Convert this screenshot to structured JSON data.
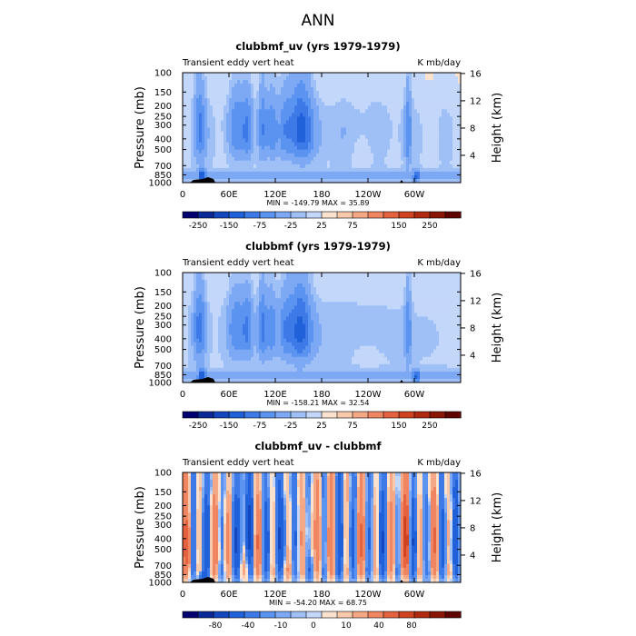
{
  "page": {
    "title": "ANN",
    "colors": {
      "text": "#000000",
      "title": "#888888",
      "background": "#ffffff"
    }
  },
  "chart_data": [
    {
      "type": "heatmap",
      "title": "clubbmf_uv (yrs 1979-1979)",
      "left_label": "Transient eddy vert heat",
      "right_label": "K mb/day",
      "ylabel": "Pressure (mb)",
      "ylabel_right": "Height (km)",
      "x_ticks": [
        "0",
        "60E",
        "120E",
        "180",
        "120W",
        "60W"
      ],
      "x_values": [
        0,
        60,
        120,
        180,
        240,
        300
      ],
      "xlim": [
        0,
        360
      ],
      "pressure_ticks": [
        "100",
        "150",
        "200",
        "250",
        "300",
        "400",
        "500",
        "700",
        "850",
        "1000"
      ],
      "pressure_values": [
        100,
        150,
        200,
        250,
        300,
        400,
        500,
        700,
        850,
        1000
      ],
      "height_ticks": [
        "4",
        "8",
        "12",
        "16"
      ],
      "height_values": [
        4,
        8,
        12,
        16
      ],
      "stats": "MIN = -149.79   MAX =  35.89",
      "min": -149.79,
      "max": 35.89,
      "colorbar_labels": [
        "-250",
        "-150",
        "-75",
        "-25",
        "25",
        "75",
        "150",
        "250"
      ],
      "colorbar_levels": [
        -300,
        -250,
        -200,
        -150,
        -100,
        -75,
        -50,
        -25,
        -10,
        10,
        25,
        50,
        75,
        100,
        150,
        200,
        250,
        300
      ],
      "colorbar_colors": [
        "#00006e",
        "#0a2896",
        "#1446be",
        "#2060d8",
        "#3d7ae8",
        "#5b93f0",
        "#7da9f4",
        "#9fc0f7",
        "#c3d7fa",
        "#fbe2cf",
        "#f8c9aa",
        "#f5a885",
        "#f08562",
        "#e4623f",
        "#cf4321",
        "#b02a12",
        "#8a1606",
        "#5e0500"
      ],
      "pattern": "uv"
    },
    {
      "type": "heatmap",
      "title": "clubbmf (yrs 1979-1979)",
      "left_label": "Transient eddy vert heat",
      "right_label": "K mb/day",
      "ylabel": "Pressure (mb)",
      "ylabel_right": "Height (km)",
      "x_ticks": [
        "0",
        "60E",
        "120E",
        "180",
        "120W",
        "60W"
      ],
      "x_values": [
        0,
        60,
        120,
        180,
        240,
        300
      ],
      "xlim": [
        0,
        360
      ],
      "pressure_ticks": [
        "100",
        "150",
        "200",
        "250",
        "300",
        "400",
        "500",
        "700",
        "850",
        "1000"
      ],
      "pressure_values": [
        100,
        150,
        200,
        250,
        300,
        400,
        500,
        700,
        850,
        1000
      ],
      "height_ticks": [
        "4",
        "8",
        "12",
        "16"
      ],
      "height_values": [
        4,
        8,
        12,
        16
      ],
      "stats": "MIN = -158.21   MAX =  32.54",
      "min": -158.21,
      "max": 32.54,
      "colorbar_labels": [
        "-250",
        "-150",
        "-75",
        "-25",
        "25",
        "75",
        "150",
        "250"
      ],
      "colorbar_levels": [
        -300,
        -250,
        -200,
        -150,
        -100,
        -75,
        -50,
        -25,
        -10,
        10,
        25,
        50,
        75,
        100,
        150,
        200,
        250,
        300
      ],
      "colorbar_colors": [
        "#00006e",
        "#0a2896",
        "#1446be",
        "#2060d8",
        "#3d7ae8",
        "#5b93f0",
        "#7da9f4",
        "#9fc0f7",
        "#c3d7fa",
        "#fbe2cf",
        "#f8c9aa",
        "#f5a885",
        "#f08562",
        "#e4623f",
        "#cf4321",
        "#b02a12",
        "#8a1606",
        "#5e0500"
      ],
      "pattern": "base"
    },
    {
      "type": "heatmap",
      "title": "clubbmf_uv - clubbmf",
      "left_label": "Transient eddy vert heat",
      "right_label": "K mb/day",
      "ylabel": "Pressure (mb)",
      "ylabel_right": "Height (km)",
      "x_ticks": [
        "0",
        "60E",
        "120E",
        "180",
        "120W",
        "60W"
      ],
      "x_values": [
        0,
        60,
        120,
        180,
        240,
        300
      ],
      "xlim": [
        0,
        360
      ],
      "pressure_ticks": [
        "100",
        "150",
        "200",
        "250",
        "300",
        "400",
        "500",
        "700",
        "850",
        "1000"
      ],
      "pressure_values": [
        100,
        150,
        200,
        250,
        300,
        400,
        500,
        700,
        850,
        1000
      ],
      "height_ticks": [
        "4",
        "8",
        "12",
        "16"
      ],
      "height_values": [
        4,
        8,
        12,
        16
      ],
      "stats": "MIN = -54.20   MAX =  68.75",
      "min": -54.2,
      "max": 68.75,
      "colorbar_labels": [
        "-80",
        "-40",
        "-10",
        "0",
        "10",
        "40",
        "80"
      ],
      "colorbar_levels": [
        -100,
        -80,
        -60,
        -40,
        -20,
        -10,
        -5,
        -1,
        0,
        1,
        5,
        10,
        20,
        40,
        60,
        80,
        100
      ],
      "colorbar_colors": [
        "#00006e",
        "#0a2896",
        "#1446be",
        "#2060d8",
        "#3d7ae8",
        "#5b93f0",
        "#7da9f4",
        "#9fc0f7",
        "#c3d7fa",
        "#fbe2cf",
        "#f8c9aa",
        "#f5a885",
        "#f08562",
        "#e4623f",
        "#cf4321",
        "#b02a12",
        "#8a1606",
        "#5e0500"
      ],
      "pattern": "diff"
    }
  ]
}
